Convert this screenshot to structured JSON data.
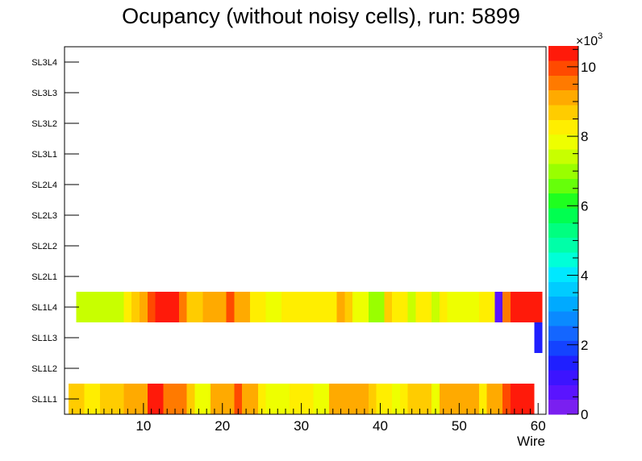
{
  "chart_data": {
    "type": "heatmap",
    "title": "Ocupancy (without noisy cells), run: 5899",
    "xlabel": "Wire",
    "ylabel": "",
    "xlim": [
      0,
      61
    ],
    "x_ticks": [
      10,
      20,
      30,
      40,
      50,
      60
    ],
    "y_categories": [
      "SL1L1",
      "SL1L2",
      "SL1L3",
      "SL1L4",
      "SL2L1",
      "SL2L2",
      "SL2L3",
      "SL2L4",
      "SL3L1",
      "SL3L2",
      "SL3L3",
      "SL3L4"
    ],
    "colorbar": {
      "min": 0,
      "max": 10600,
      "exponent_label": "×10",
      "exponent_power": "3",
      "tick_values": [
        0,
        2000,
        4000,
        6000,
        8000,
        10000
      ],
      "tick_labels": [
        "0",
        "2",
        "4",
        "6",
        "8",
        "10"
      ],
      "colors": [
        "#7a1ff0",
        "#5a14ff",
        "#3c14ff",
        "#1f1fff",
        "#1443ff",
        "#1466ff",
        "#0a8aff",
        "#00aaff",
        "#00ccff",
        "#00e8ff",
        "#00ffd8",
        "#00ffa8",
        "#00ff80",
        "#00ff50",
        "#1fff1f",
        "#66ff0a",
        "#99ff00",
        "#c8ff00",
        "#eeff00",
        "#ffee00",
        "#ffcc00",
        "#ffaa00",
        "#ff7a00",
        "#ff4a00",
        "#ff1a0a"
      ]
    },
    "series": [
      {
        "name": "SL1L1",
        "x_start": 1,
        "values": [
          8600,
          8700,
          8300,
          8300,
          8500,
          8500,
          8600,
          9100,
          9100,
          9100,
          10300,
          10500,
          9500,
          9500,
          9500,
          8700,
          7900,
          7900,
          9100,
          9100,
          9100,
          9800,
          9100,
          9100,
          8300,
          7900,
          7900,
          7900,
          8400,
          8400,
          8400,
          7900,
          7900,
          9100,
          9100,
          9100,
          9100,
          9100,
          8700,
          8400,
          8400,
          7900,
          8400,
          8500,
          8500,
          8500,
          7900,
          9100,
          9100,
          9100,
          9100,
          9100,
          8400,
          9100,
          9100,
          9800,
          10300,
          10300,
          10300,
          0
        ]
      },
      {
        "name": "SL1L3",
        "x_start": 1,
        "values": [
          0,
          0,
          0,
          0,
          0,
          0,
          0,
          0,
          0,
          0,
          0,
          0,
          0,
          0,
          0,
          0,
          0,
          0,
          0,
          0,
          0,
          0,
          0,
          0,
          0,
          0,
          0,
          0,
          0,
          0,
          0,
          0,
          0,
          0,
          0,
          0,
          0,
          0,
          0,
          0,
          0,
          0,
          0,
          0,
          0,
          0,
          0,
          0,
          0,
          0,
          0,
          0,
          0,
          0,
          0,
          0,
          0,
          0,
          0,
          1300
        ]
      },
      {
        "name": "SL1L4",
        "x_start": 1,
        "values": [
          0,
          7400,
          7400,
          7400,
          7400,
          7400,
          7400,
          8100,
          8500,
          9100,
          9800,
          10400,
          10400,
          10400,
          9400,
          8500,
          8500,
          9100,
          9100,
          9100,
          9800,
          9100,
          9100,
          8300,
          8300,
          7900,
          7900,
          8300,
          8300,
          8300,
          8300,
          8300,
          8300,
          8300,
          9200,
          8500,
          7900,
          7900,
          7100,
          7100,
          8500,
          8300,
          8300,
          7400,
          8400,
          8400,
          7600,
          8400,
          7900,
          7900,
          7900,
          7900,
          8400,
          8400,
          500,
          9400,
          10400,
          10400,
          10400,
          10400
        ]
      }
    ]
  }
}
